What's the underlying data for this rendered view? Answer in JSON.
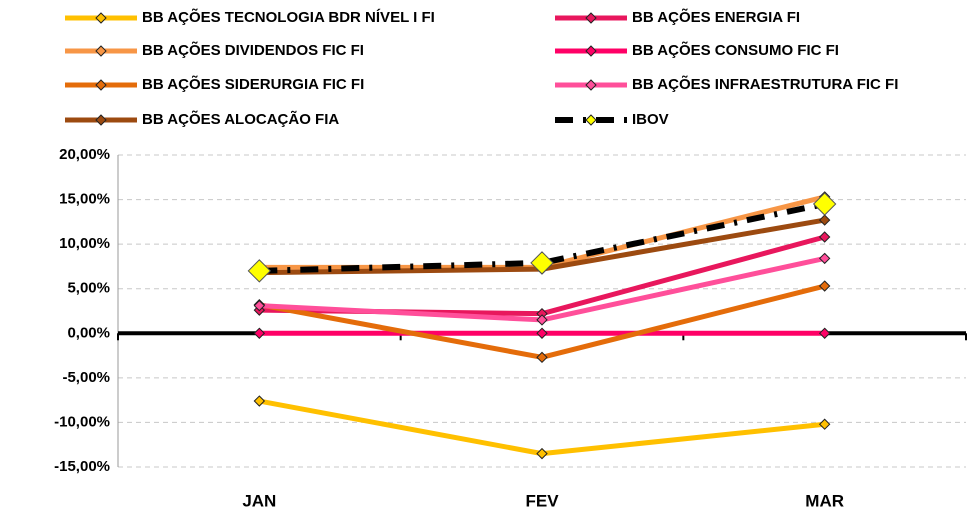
{
  "chart_data": {
    "type": "line",
    "categories": [
      "JAN",
      "FEV",
      "MAR"
    ],
    "series": [
      {
        "name": "BB AÇÕES TECNOLOGIA BDR NÍVEL I FI",
        "color": "#FFC000",
        "values": [
          -7.6,
          -13.5,
          -10.2
        ]
      },
      {
        "name": "BB AÇÕES ENERGIA FI",
        "color": "#E8175D",
        "values": [
          2.6,
          2.2,
          10.8
        ]
      },
      {
        "name": "BB AÇÕES DIVIDENDOS FIC FI",
        "color": "#F79646",
        "values": [
          7.4,
          7.4,
          15.3
        ]
      },
      {
        "name": "BB AÇÕES CONSUMO FIC FI",
        "color": "#FF0066",
        "values": [
          0,
          0,
          0
        ]
      },
      {
        "name": "BB AÇÕES SIDERURGIA FIC FI",
        "color": "#E46C0A",
        "values": [
          3.2,
          -2.7,
          5.3
        ]
      },
      {
        "name": "BB AÇÕES INFRAESTRUTURA FIC FI",
        "color": "#FF4F9A",
        "values": [
          3.1,
          1.5,
          8.4
        ]
      },
      {
        "name": "BB AÇÕES ALOCAÇÃO FIA",
        "color": "#9C4A10",
        "values": [
          6.8,
          7.2,
          12.7
        ]
      },
      {
        "name": "IBOV",
        "color": "#000000",
        "marker_color": "#FFFF00",
        "line_style": "dash-dot",
        "values": [
          7.0,
          7.9,
          14.5
        ]
      }
    ],
    "ylim": [
      -15,
      20
    ],
    "yticks": [
      {
        "value": -15,
        "label": "-15,00%"
      },
      {
        "value": -10,
        "label": "-10,00%"
      },
      {
        "value": -5,
        "label": "-5,00%"
      },
      {
        "value": 0,
        "label": "0,00%"
      },
      {
        "value": 5,
        "label": "5,00%"
      },
      {
        "value": 10,
        "label": "10,00%"
      },
      {
        "value": 15,
        "label": "15,00%"
      },
      {
        "value": 20,
        "label": "20,00%"
      }
    ],
    "grid": true,
    "legend": "top"
  }
}
